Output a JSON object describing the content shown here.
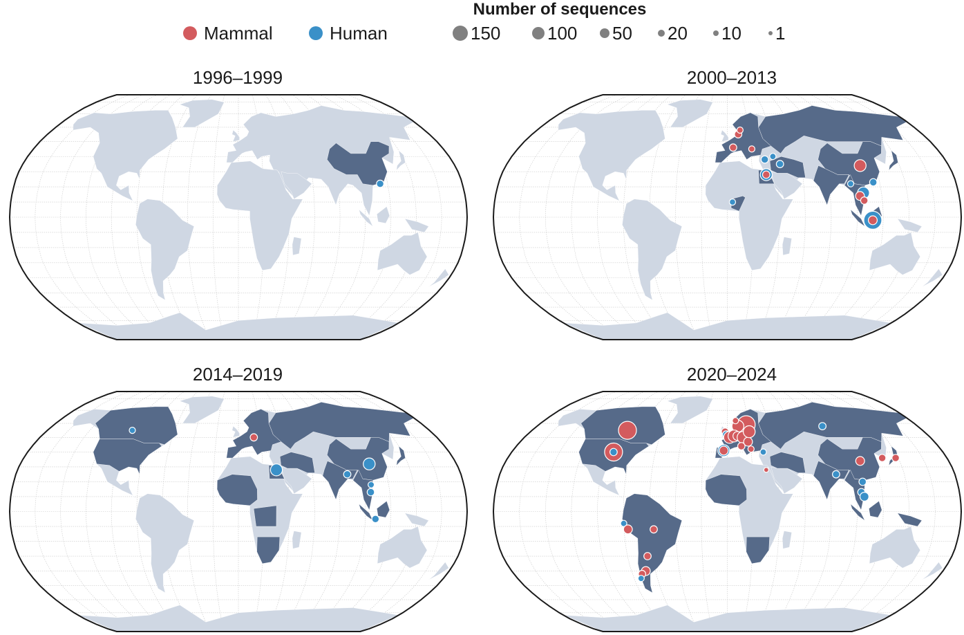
{
  "legend": {
    "title": "Number of sequences",
    "hosts": [
      {
        "label": "Mammal",
        "color": "#d35b5e"
      },
      {
        "label": "Human",
        "color": "#3a90c8"
      }
    ],
    "sizes": [
      {
        "label": "150",
        "value": 150
      },
      {
        "label": "100",
        "value": 100
      },
      {
        "label": "50",
        "value": 50
      },
      {
        "label": "20",
        "value": 20
      },
      {
        "label": "10",
        "value": 10
      },
      {
        "label": "1",
        "value": 1
      }
    ]
  },
  "colors": {
    "land": "#cfd7e3",
    "highlight": "#566a89",
    "mammal": "#d35b5e",
    "human": "#3a90c8",
    "ocean": "#ffffff",
    "graticule": "#c8c8c8"
  },
  "panels": [
    {
      "title": "1996–1999",
      "highlighted_countries": [
        "China"
      ],
      "points": [
        {
          "host": "human",
          "lon": 114,
          "lat": 22,
          "n": 10
        }
      ]
    },
    {
      "title": "2000–2013",
      "highlighted_countries": [
        "Europe",
        "Russia",
        "China",
        "Egypt",
        "Nigeria",
        "Southeast Asia",
        "Indonesia",
        "Middle East",
        "India",
        "Japan"
      ],
      "points": [
        {
          "host": "mammal",
          "lon": 10,
          "lat": 55,
          "n": 10
        },
        {
          "host": "mammal",
          "lon": 12,
          "lat": 58,
          "n": 5
        },
        {
          "host": "mammal",
          "lon": 5,
          "lat": 46,
          "n": 10
        },
        {
          "host": "mammal",
          "lon": 21,
          "lat": 45,
          "n": 5
        },
        {
          "host": "human",
          "lon": 31,
          "lat": 38,
          "n": 10
        },
        {
          "host": "human",
          "lon": 38,
          "lat": 40,
          "n": 5
        },
        {
          "host": "human",
          "lon": 43,
          "lat": 35,
          "n": 10
        },
        {
          "host": "human",
          "lon": 31,
          "lat": 28,
          "n": 50
        },
        {
          "host": "mammal",
          "lon": 31,
          "lat": 28,
          "n": 10
        },
        {
          "host": "human",
          "lon": 4,
          "lat": 10,
          "n": 5
        },
        {
          "host": "mammal",
          "lon": 108,
          "lat": 34,
          "n": 50
        },
        {
          "host": "human",
          "lon": 97,
          "lat": 22,
          "n": 5
        },
        {
          "host": "human",
          "lon": 115,
          "lat": 23,
          "n": 10
        },
        {
          "host": "human",
          "lon": 106,
          "lat": 16,
          "n": 50
        },
        {
          "host": "mammal",
          "lon": 103,
          "lat": 14,
          "n": 20
        },
        {
          "host": "mammal",
          "lon": 106,
          "lat": 11,
          "n": 10
        },
        {
          "host": "human",
          "lon": 112,
          "lat": -2,
          "n": 150
        },
        {
          "host": "mammal",
          "lon": 112,
          "lat": -2,
          "n": 20
        }
      ]
    },
    {
      "title": "2014–2019",
      "highlighted_countries": [
        "USA",
        "Canada",
        "Europe",
        "Russia",
        "China",
        "Africa (partial)",
        "India",
        "Southeast Asia"
      ],
      "points": [
        {
          "host": "human",
          "lon": -100,
          "lat": 55,
          "n": 5
        },
        {
          "host": "mammal",
          "lon": 14,
          "lat": 50,
          "n": 10
        },
        {
          "host": "human",
          "lon": 108,
          "lat": 32,
          "n": 50
        },
        {
          "host": "human",
          "lon": 31,
          "lat": 28,
          "n": 50
        },
        {
          "host": "human",
          "lon": 88,
          "lat": 25,
          "n": 10
        },
        {
          "host": "human",
          "lon": 106,
          "lat": 18,
          "n": 5
        },
        {
          "host": "human",
          "lon": 105,
          "lat": 13,
          "n": 10
        },
        {
          "host": "human",
          "lon": 108,
          "lat": -5,
          "n": 10
        }
      ]
    },
    {
      "title": "2020–2024",
      "highlighted_countries": [
        "USA",
        "Canada",
        "South America",
        "Europe",
        "Russia",
        "China",
        "Africa (partial)",
        "India",
        "Southeast Asia",
        "Japan"
      ],
      "points": [
        {
          "host": "mammal",
          "lon": -92,
          "lat": 55,
          "n": 150
        },
        {
          "host": "mammal",
          "lon": -95,
          "lat": 40,
          "n": 150
        },
        {
          "host": "human",
          "lon": -95,
          "lat": 40,
          "n": 10
        },
        {
          "host": "human",
          "lon": -80,
          "lat": -8,
          "n": 5
        },
        {
          "host": "mammal",
          "lon": -77,
          "lat": -12,
          "n": 20
        },
        {
          "host": "mammal",
          "lon": -57,
          "lat": -12,
          "n": 10
        },
        {
          "host": "mammal",
          "lon": -64,
          "lat": -30,
          "n": 10
        },
        {
          "host": "mammal",
          "lon": -68,
          "lat": -40,
          "n": 20
        },
        {
          "host": "mammal",
          "lon": -72,
          "lat": -42,
          "n": 10
        },
        {
          "host": "human",
          "lon": -74,
          "lat": -45,
          "n": 5
        },
        {
          "host": "mammal",
          "lon": 18,
          "lat": 59,
          "n": 150
        },
        {
          "host": "mammal",
          "lon": 10,
          "lat": 58,
          "n": 50
        },
        {
          "host": "mammal",
          "lon": 8,
          "lat": 62,
          "n": 5
        },
        {
          "host": "mammal",
          "lon": -2,
          "lat": 54,
          "n": 10
        },
        {
          "host": "human",
          "lon": -1,
          "lat": 52,
          "n": 10
        },
        {
          "host": "mammal",
          "lon": 2,
          "lat": 50,
          "n": 50
        },
        {
          "host": "mammal",
          "lon": 6,
          "lat": 51,
          "n": 50
        },
        {
          "host": "mammal",
          "lon": 9,
          "lat": 51,
          "n": 20
        },
        {
          "host": "mammal",
          "lon": 14,
          "lat": 50,
          "n": 50
        },
        {
          "host": "mammal",
          "lon": 18,
          "lat": 47,
          "n": 20
        },
        {
          "host": "mammal",
          "lon": 20,
          "lat": 54,
          "n": 50
        },
        {
          "host": "human",
          "lon": -3,
          "lat": 41,
          "n": 50
        },
        {
          "host": "mammal",
          "lon": -3,
          "lat": 41,
          "n": 20
        },
        {
          "host": "mammal",
          "lon": 12,
          "lat": 44,
          "n": 10
        },
        {
          "host": "mammal",
          "lon": 20,
          "lat": 42,
          "n": 5
        },
        {
          "host": "human",
          "lon": 30,
          "lat": 40,
          "n": 5
        },
        {
          "host": "mammal",
          "lon": 31,
          "lat": 28,
          "n": 1
        },
        {
          "host": "human",
          "lon": 90,
          "lat": 58,
          "n": 10
        },
        {
          "host": "mammal",
          "lon": 108,
          "lat": 34,
          "n": 20
        },
        {
          "host": "mammal",
          "lon": 127,
          "lat": 36,
          "n": 10
        },
        {
          "host": "mammal",
          "lon": 138,
          "lat": 36,
          "n": 10
        },
        {
          "host": "human",
          "lon": 86,
          "lat": 25,
          "n": 10
        },
        {
          "host": "human",
          "lon": 104,
          "lat": 13,
          "n": 10
        },
        {
          "host": "human",
          "lon": 106,
          "lat": 10,
          "n": 20
        },
        {
          "host": "human",
          "lon": 106,
          "lat": 20,
          "n": 10
        }
      ]
    }
  ]
}
